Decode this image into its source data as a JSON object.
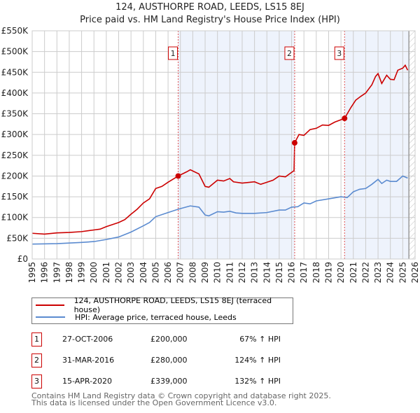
{
  "title": "124, AUSTHORPE ROAD, LEEDS, LS15 8EJ",
  "subtitle": "Price paid vs. HM Land Registry's House Price Index (HPI)",
  "chart_data": {
    "type": "line",
    "xlim": [
      1995,
      2026
    ],
    "ylim": [
      0,
      550000
    ],
    "yticks": [
      {
        "v": 0,
        "l": "£0"
      },
      {
        "v": 50000,
        "l": "£50K"
      },
      {
        "v": 100000,
        "l": "£100K"
      },
      {
        "v": 150000,
        "l": "£150K"
      },
      {
        "v": 200000,
        "l": "£200K"
      },
      {
        "v": 250000,
        "l": "£250K"
      },
      {
        "v": 300000,
        "l": "£300K"
      },
      {
        "v": 350000,
        "l": "£350K"
      },
      {
        "v": 400000,
        "l": "£400K"
      },
      {
        "v": 450000,
        "l": "£450K"
      },
      {
        "v": 500000,
        "l": "£500K"
      },
      {
        "v": 550000,
        "l": "£550K"
      }
    ],
    "xticks": [
      "1995",
      "1996",
      "1997",
      "1998",
      "1999",
      "2000",
      "2001",
      "2002",
      "2003",
      "2004",
      "2005",
      "2006",
      "2007",
      "2008",
      "2009",
      "2010",
      "2011",
      "2012",
      "2013",
      "2014",
      "2015",
      "2016",
      "2017",
      "2018",
      "2019",
      "2020",
      "2021",
      "2022",
      "2023",
      "2024",
      "2025",
      "2026"
    ],
    "series": [
      {
        "name": "124, AUSTHORPE ROAD, LEEDS, LS15 8EJ (terraced house)",
        "color": "#cc0000",
        "x": [
          1995,
          1996,
          1997,
          1998,
          1999,
          2000,
          2000.5,
          2001,
          2002,
          2002.5,
          2003,
          2003.5,
          2004,
          2004.5,
          2005,
          2005.5,
          2006,
          2006.82,
          2007.5,
          2007.8,
          2008.5,
          2009,
          2009.3,
          2010,
          2010.5,
          2011,
          2011.3,
          2012,
          2013,
          2013.5,
          2014,
          2014.5,
          2015,
          2015.5,
          2016.2,
          2016.25,
          2016.6,
          2017,
          2017.5,
          2018,
          2018.5,
          2019,
          2019.5,
          2020.29,
          2020.8,
          2021.2,
          2021.6,
          2022,
          2022.5,
          2022.8,
          2023,
          2023.3,
          2023.7,
          2024,
          2024.3,
          2024.6,
          2025,
          2025.2,
          2025.4
        ],
        "y": [
          62000,
          60000,
          63000,
          64000,
          66000,
          70000,
          72000,
          78000,
          88000,
          95000,
          108000,
          120000,
          135000,
          145000,
          170000,
          175000,
          185000,
          200000,
          210000,
          215000,
          205000,
          175000,
          173000,
          190000,
          188000,
          194000,
          186000,
          183000,
          186000,
          180000,
          185000,
          190000,
          200000,
          198000,
          213000,
          280000,
          300000,
          298000,
          312000,
          315000,
          323000,
          322000,
          330000,
          339000,
          365000,
          383000,
          392000,
          400000,
          420000,
          440000,
          447000,
          423000,
          443000,
          433000,
          432000,
          455000,
          460000,
          467000,
          455000
        ]
      },
      {
        "name": "HPI: Average price, terraced house, Leeds",
        "color": "#5b8bd0",
        "x": [
          1995,
          1997,
          1999,
          2000,
          2001,
          2002,
          2003,
          2004,
          2004.5,
          2005,
          2006,
          2006.82,
          2007.8,
          2008.5,
          2009,
          2009.3,
          2010,
          2010.5,
          2011,
          2011.5,
          2012,
          2013,
          2014,
          2015,
          2015.5,
          2016,
          2016.5,
          2017,
          2017.5,
          2018,
          2019,
          2020,
          2020.5,
          2021,
          2021.5,
          2022,
          2022.5,
          2023,
          2023.3,
          2023.7,
          2024,
          2024.5,
          2025,
          2025.4
        ],
        "y": [
          36000,
          37000,
          40000,
          42000,
          47000,
          53000,
          65000,
          80000,
          88000,
          102000,
          112000,
          120000,
          128000,
          125000,
          106000,
          104000,
          114000,
          113000,
          115000,
          111000,
          110000,
          110000,
          112000,
          118000,
          118000,
          125000,
          126000,
          135000,
          133000,
          140000,
          145000,
          150000,
          148000,
          162000,
          168000,
          170000,
          180000,
          192000,
          182000,
          190000,
          187000,
          187000,
          200000,
          195000
        ]
      }
    ],
    "sales": [
      {
        "n": "1",
        "x": 2006.82,
        "y": 200000
      },
      {
        "n": "2",
        "x": 2016.25,
        "y": 280000
      },
      {
        "n": "3",
        "x": 2020.29,
        "y": 339000
      }
    ],
    "shaded": [
      [
        2006.82,
        2016.25
      ],
      [
        2020.29,
        2025.5
      ]
    ],
    "hatched_from": 2025.5
  },
  "legend": {
    "items": [
      "124, AUSTHORPE ROAD, LEEDS, LS15 8EJ (terraced house)",
      "HPI: Average price, terraced house, Leeds"
    ]
  },
  "table": [
    {
      "n": "1",
      "date": "27-OCT-2006",
      "price": "£200,000",
      "hpi": "67% ↑ HPI"
    },
    {
      "n": "2",
      "date": "31-MAR-2016",
      "price": "£280,000",
      "hpi": "124% ↑ HPI"
    },
    {
      "n": "3",
      "date": "15-APR-2020",
      "price": "£339,000",
      "hpi": "132% ↑ HPI"
    }
  ],
  "footer": [
    "Contains HM Land Registry data © Crown copyright and database right 2025.",
    "This data is licensed under the Open Government Licence v3.0."
  ]
}
